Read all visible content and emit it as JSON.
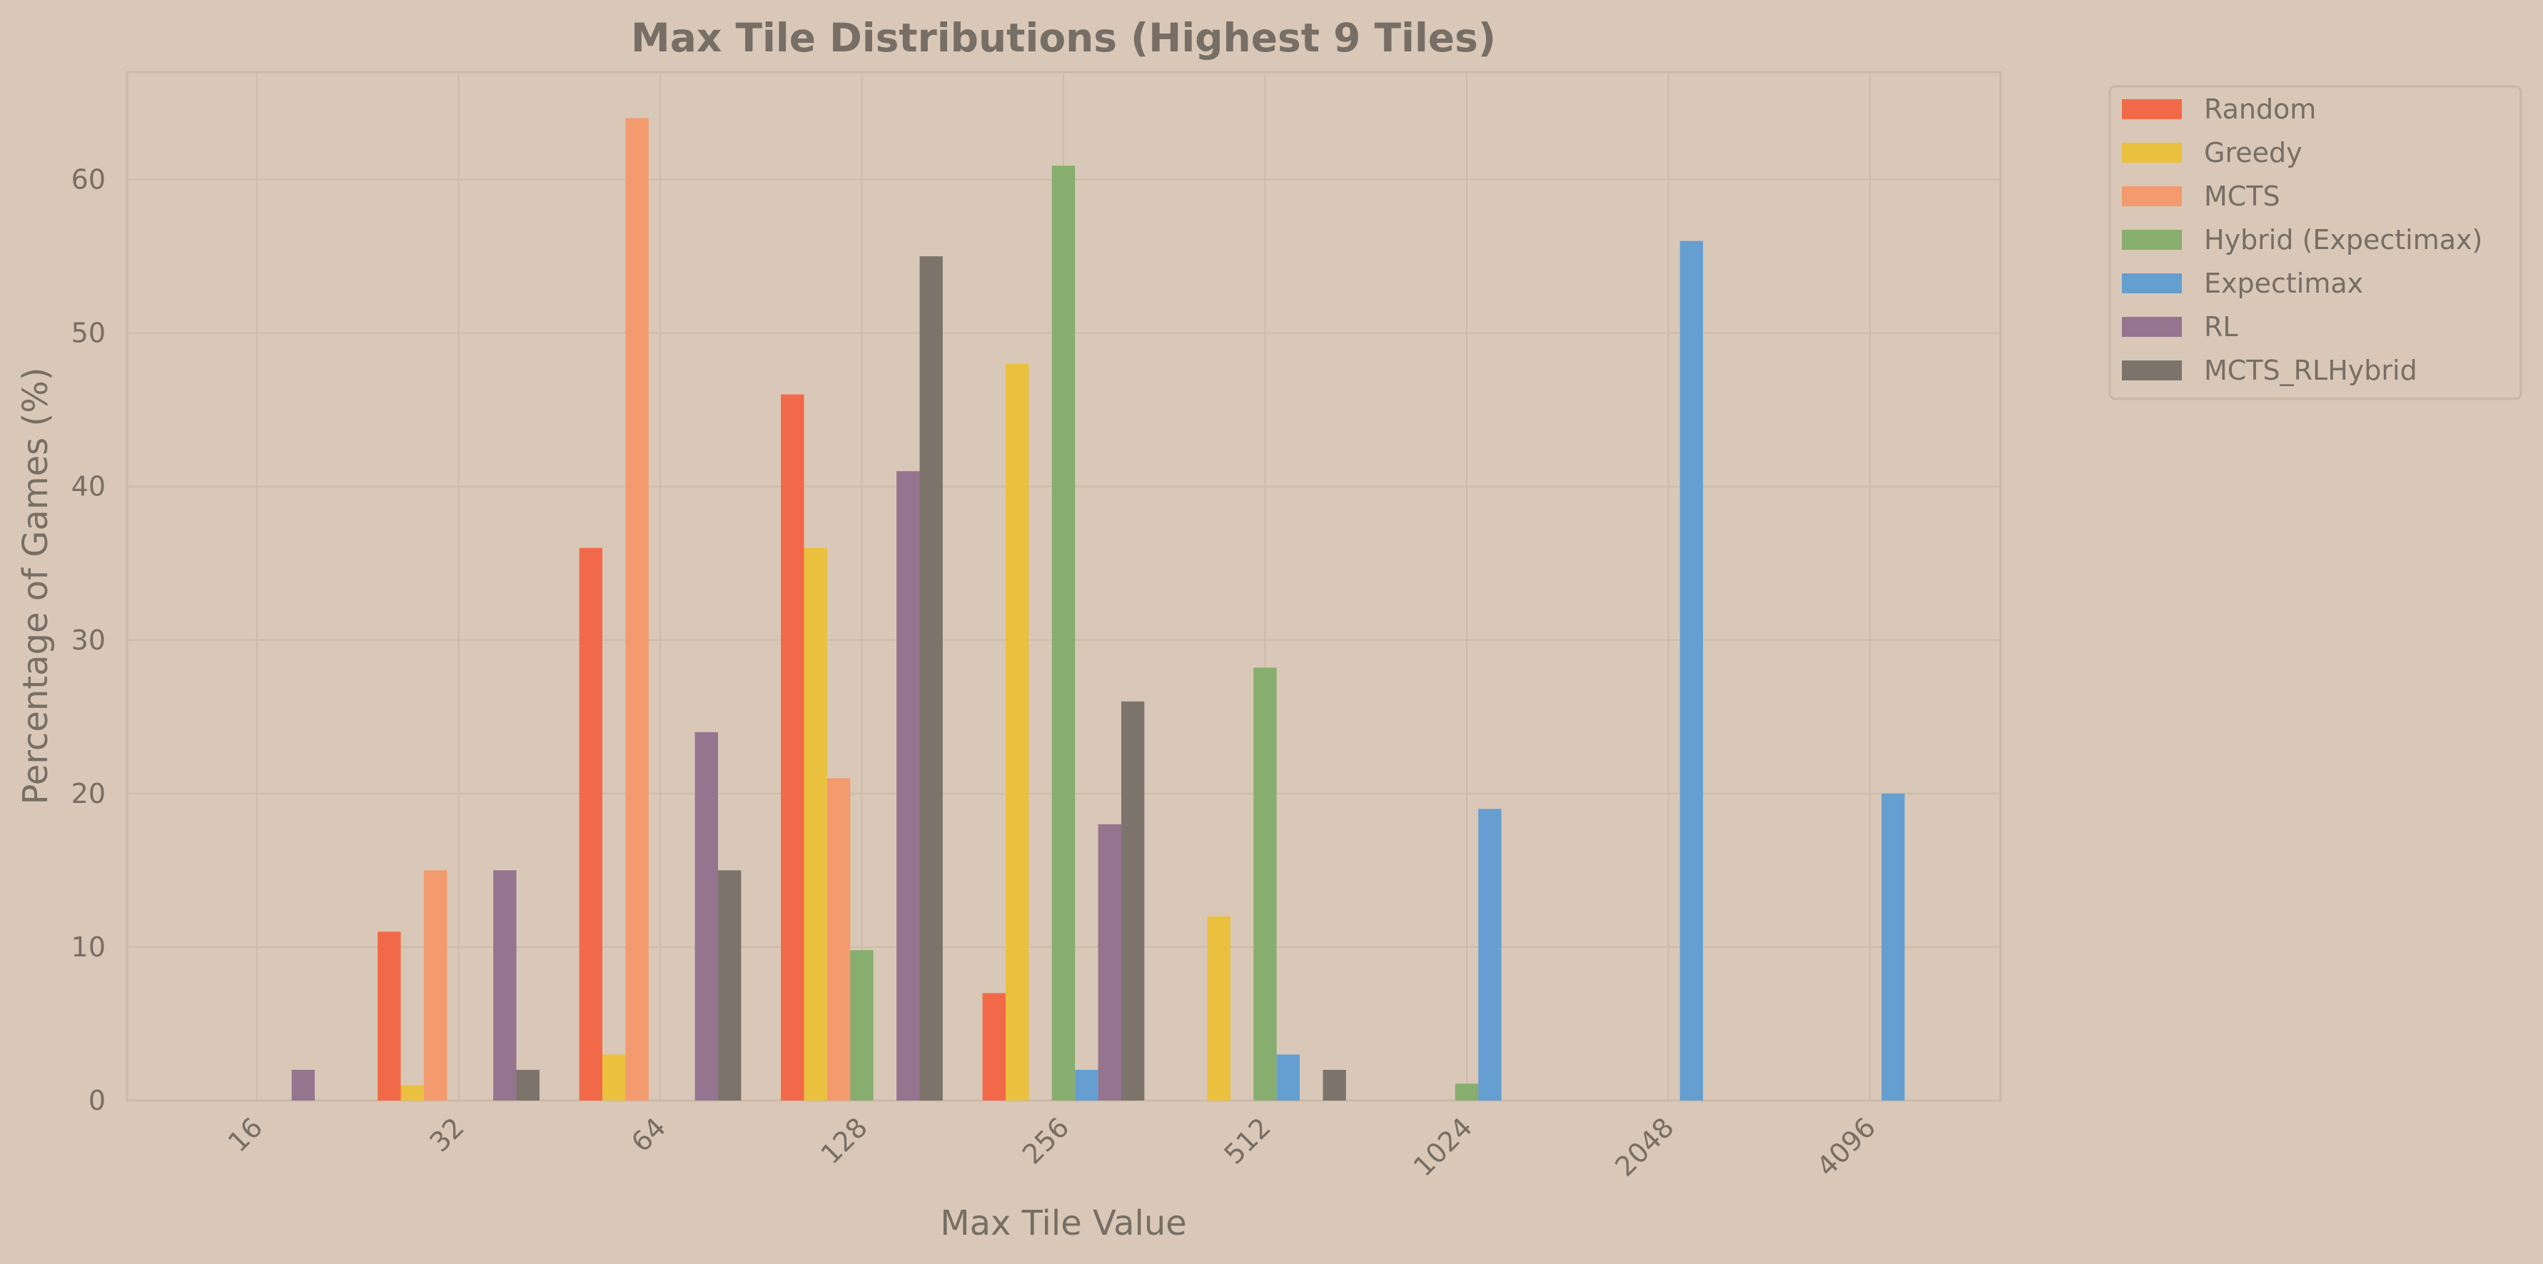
{
  "chart_data": {
    "type": "bar",
    "title": "Max Tile Distributions (Highest 9 Tiles)",
    "xlabel": "Max Tile Value",
    "ylabel": "Percentage of Games (%)",
    "categories": [
      "16",
      "32",
      "64",
      "128",
      "256",
      "512",
      "1024",
      "2048",
      "4096"
    ],
    "ylim": [
      0,
      67
    ],
    "yticks": [
      0,
      10,
      20,
      30,
      40,
      50,
      60
    ],
    "grid": true,
    "legend_position": "outside-top-right",
    "series": [
      {
        "name": "Random",
        "color": "#f2694a",
        "values": [
          0,
          11,
          36,
          46,
          7,
          0,
          0,
          0,
          0
        ]
      },
      {
        "name": "Greedy",
        "color": "#eac03f",
        "values": [
          0,
          1,
          3,
          36,
          48,
          12,
          0,
          0,
          0
        ]
      },
      {
        "name": "MCTS",
        "color": "#f39a6e",
        "values": [
          0,
          15,
          64,
          21,
          0,
          0,
          0,
          0,
          0
        ]
      },
      {
        "name": "Hybrid (Expectimax)",
        "color": "#87ae6e",
        "values": [
          0,
          0,
          0,
          9.8,
          60.9,
          28.2,
          1.1,
          0,
          0
        ]
      },
      {
        "name": "Expectimax",
        "color": "#659ed1",
        "values": [
          0,
          0,
          0,
          0,
          2,
          3,
          19,
          56,
          20
        ]
      },
      {
        "name": "RL",
        "color": "#94748f",
        "values": [
          2,
          15,
          24,
          41,
          18,
          0,
          0,
          0,
          0
        ]
      },
      {
        "name": "MCTS_RLHybrid",
        "color": "#7c746b",
        "values": [
          0,
          2,
          15,
          55,
          26,
          2,
          0,
          0,
          0
        ]
      }
    ]
  }
}
